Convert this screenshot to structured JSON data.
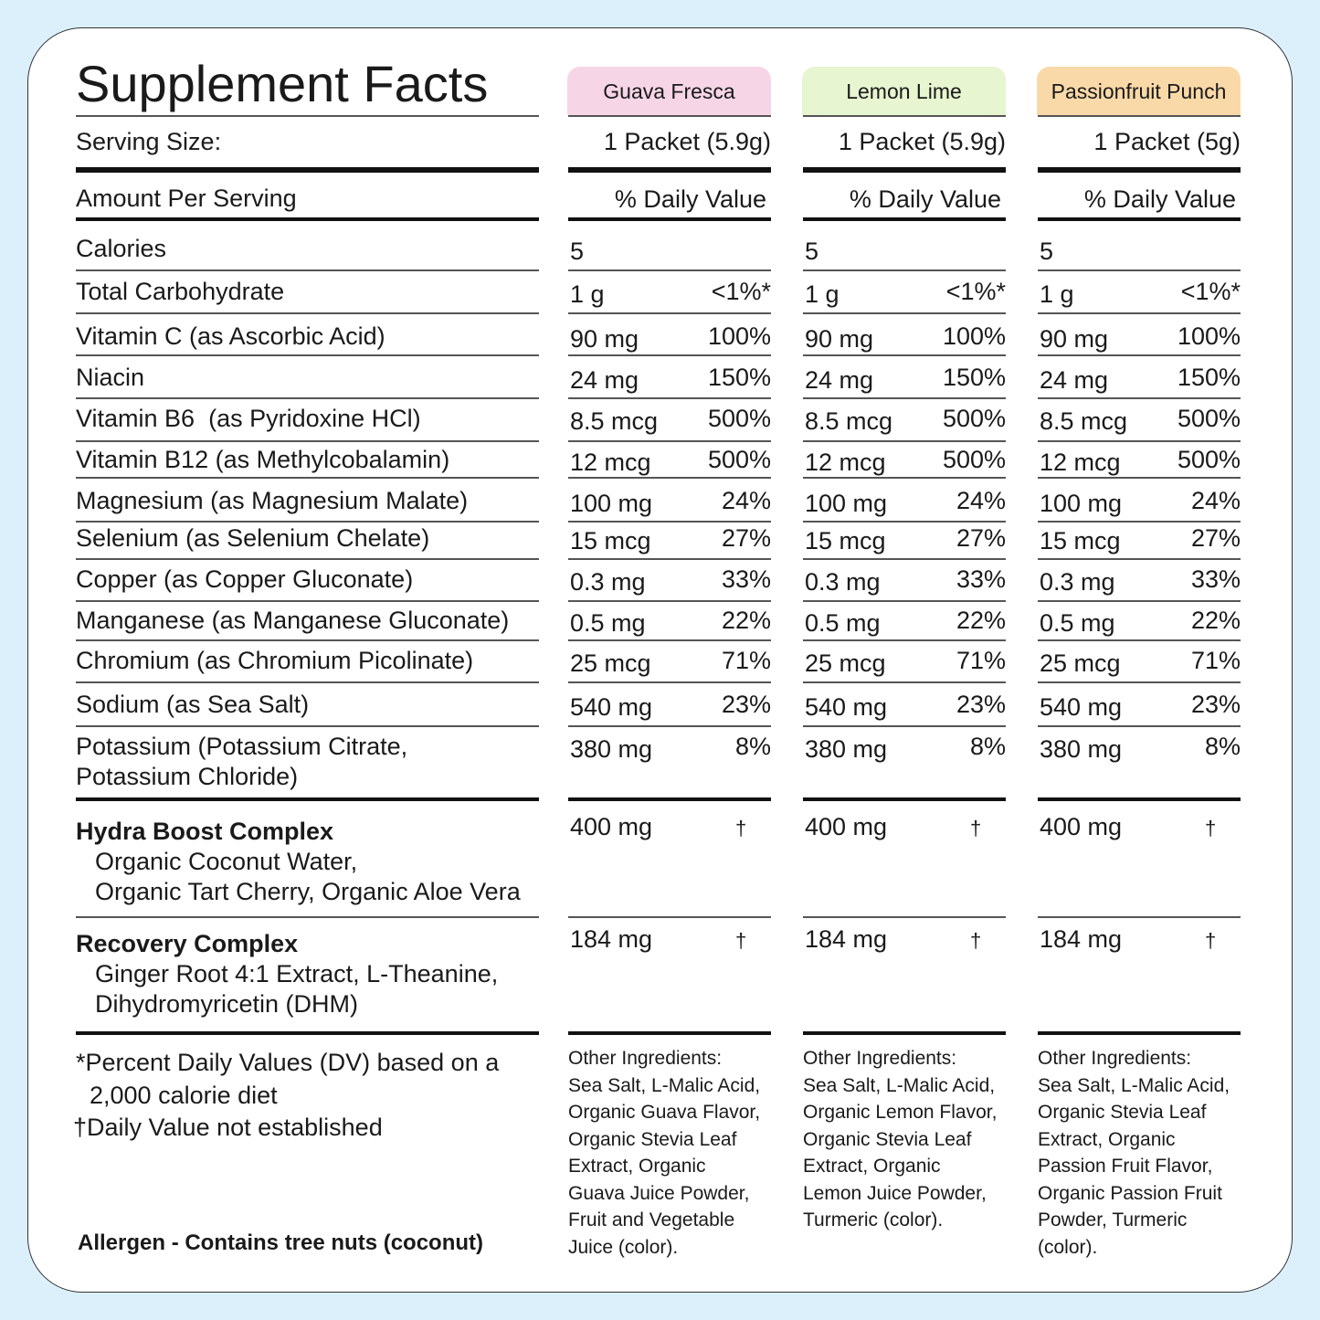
{
  "title": "Supplement Facts",
  "serving_label": "Serving Size:",
  "amount_label": "Amount Per Serving",
  "flavors": [
    {
      "name": "Guava Fresca",
      "color": "#f6d6e6",
      "serving": "1 Packet (5.9g)",
      "dv_header": "% Daily Value",
      "other_ingredients": "Other Ingredients:\nSea Salt, L-Malic Acid,\nOrganic Guava Flavor,\nOrganic Stevia Leaf\nExtract, Organic\nGuava Juice Powder,\nFruit and Vegetable\nJuice (color)."
    },
    {
      "name": "Lemon Lime",
      "color": "#e7f5d0",
      "serving": "1 Packet (5.9g)",
      "dv_header": "% Daily Value",
      "other_ingredients": "Other Ingredients:\nSea Salt, L-Malic Acid,\nOrganic Lemon Flavor,\nOrganic Stevia Leaf\nExtract, Organic\nLemon Juice Powder,\nTurmeric (color)."
    },
    {
      "name": "Passionfruit Punch",
      "color": "#fad9a8",
      "serving": "1 Packet (5g)",
      "dv_header": "% Daily Value",
      "other_ingredients": "Other Ingredients:\nSea Salt, L-Malic Acid,\nOrganic Stevia Leaf\nExtract, Organic\nPassion Fruit Flavor,\nOrganic Passion Fruit\nPowder, Turmeric\n(color)."
    }
  ],
  "nutrients": [
    {
      "name": "Calories",
      "amount": "5",
      "dv": ""
    },
    {
      "name": "Total Carbohydrate",
      "amount": "1 g",
      "dv": "<1%*"
    },
    {
      "name": "Vitamin C (as Ascorbic Acid)",
      "amount": "90 mg",
      "dv": "100%"
    },
    {
      "name": "Niacin",
      "amount": "24 mg",
      "dv": "150%"
    },
    {
      "name": "Vitamin B6  (as Pyridoxine HCl)",
      "amount": "8.5 mcg",
      "dv": "500%"
    },
    {
      "name": "Vitamin B12 (as Methylcobalamin)",
      "amount": "12 mcg",
      "dv": "500%"
    },
    {
      "name": "Magnesium (as Magnesium Malate)",
      "amount": "100 mg",
      "dv": "24%"
    },
    {
      "name": "Selenium (as Selenium Chelate)",
      "amount": "15 mcg",
      "dv": "27%"
    },
    {
      "name": "Copper (as Copper Gluconate)",
      "amount": "0.3 mg",
      "dv": "33%"
    },
    {
      "name": "Manganese (as Manganese Gluconate)",
      "amount": "0.5 mg",
      "dv": "22%"
    },
    {
      "name": "Chromium (as Chromium Picolinate)",
      "amount": "25 mcg",
      "dv": "71%"
    },
    {
      "name": "Sodium (as Sea Salt)",
      "amount": "540 mg",
      "dv": "23%"
    },
    {
      "name": "Potassium (Potassium Citrate,\nPotassium Chloride)",
      "amount": "380 mg",
      "dv": "8%"
    }
  ],
  "complexes": [
    {
      "name": "Hydra Boost Complex",
      "ingredients": "Organic Coconut Water,\nOrganic Tart Cherry, Organic Aloe Vera",
      "amount": "400 mg",
      "dv": "†"
    },
    {
      "name": "Recovery Complex",
      "ingredients": "Ginger Root 4:1 Extract, L-Theanine,\nDihydromyricetin (DHM)",
      "amount": "184 mg",
      "dv": "†"
    }
  ],
  "footnotes": {
    "percent": "*Percent Daily Values (DV) based on a\n  2,000 calorie diet",
    "dagger": "†Daily Value not established",
    "allergen": "Allergen - Contains tree nuts (coconut)"
  }
}
